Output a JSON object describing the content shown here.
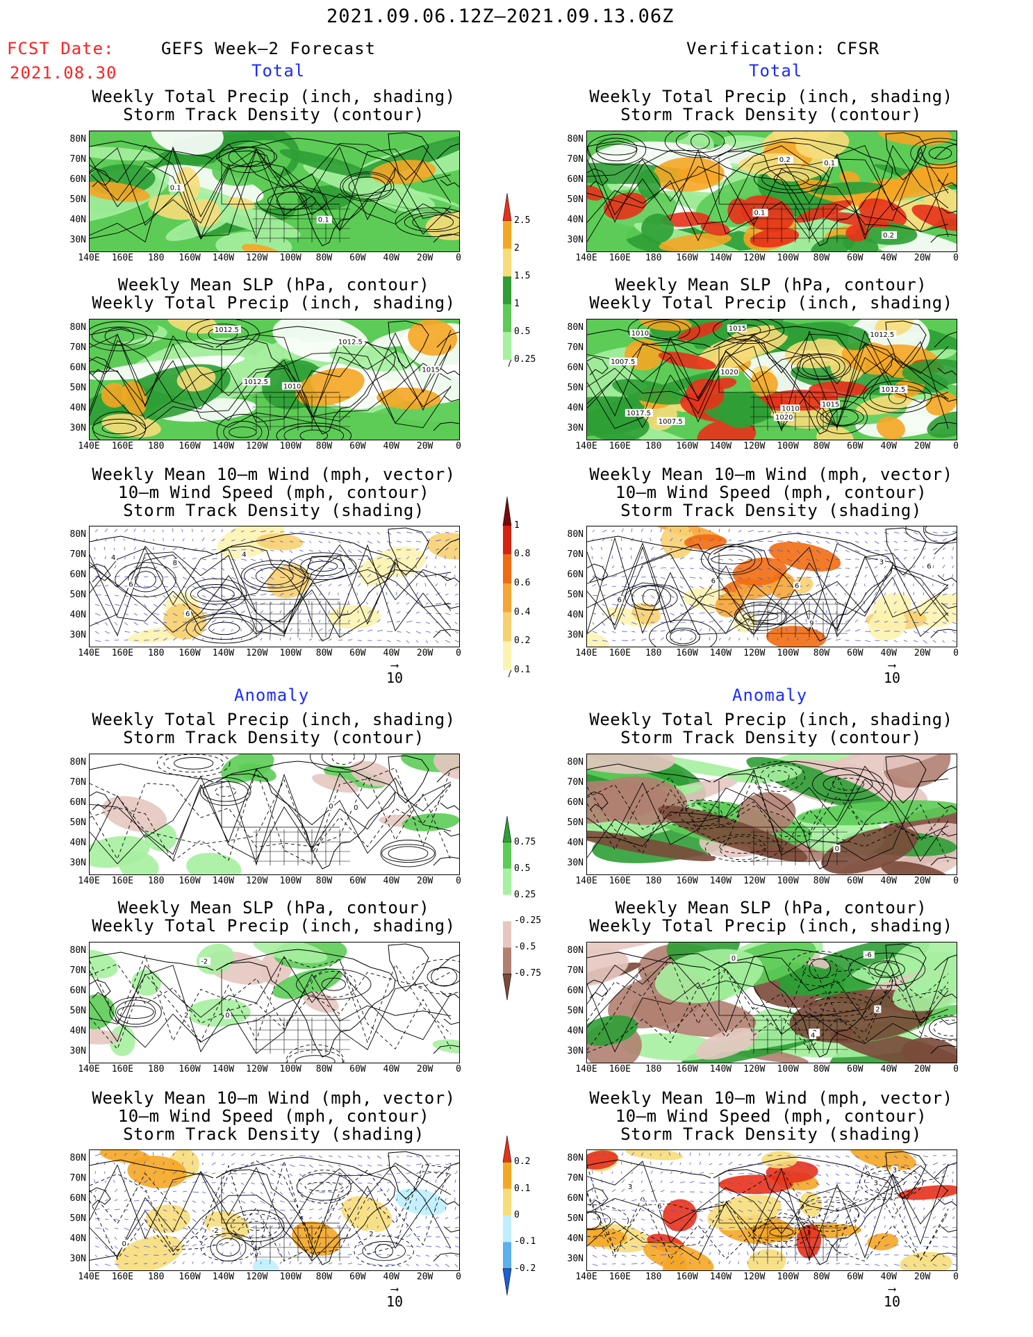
{
  "header": {
    "date_range": "2021.09.06.12Z–2021.09.13.06Z",
    "fcst_label": "FCST Date:",
    "fcst_date": "2021.08.30",
    "left_title": "GEFS Week–2 Forecast",
    "right_title": "Verification: CFSR",
    "total_label": "Total",
    "anomaly_label": "Anomaly"
  },
  "panel_titles": {
    "precip_storm": [
      "Weekly Total Precip (inch, shading)",
      "Storm Track Density (contour)"
    ],
    "slp_precip": [
      "Weekly Mean SLP (hPa, contour)",
      "Weekly Total Precip (inch, shading)"
    ],
    "wind_storm": [
      "Weekly Mean 10–m Wind (mph, vector)",
      "10–m Wind Speed (mph, contour)",
      "Storm Track Density (shading)"
    ]
  },
  "axes": {
    "lat_labels": [
      "80N",
      "70N",
      "60N",
      "50N",
      "40N",
      "30N"
    ],
    "lon_labels": [
      "140E",
      "160E",
      "180",
      "160W",
      "140W",
      "120W",
      "100W",
      "80W",
      "60W",
      "40W",
      "20W",
      "0"
    ]
  },
  "vector_ref": "10",
  "colorbars": {
    "precip_total": {
      "labels": [
        "2.5",
        "2",
        "1.5",
        "1",
        "0.5",
        "0.25"
      ],
      "colors": [
        "#e8311a",
        "#f5a623",
        "#f7dd7a",
        "#2e9e35",
        "#5ccc56",
        "#a6f0a0"
      ]
    },
    "storm_total": {
      "labels": [
        "1",
        "0.8",
        "0.6",
        "0.4",
        "0.2",
        "0.1"
      ],
      "colors": [
        "#7a0a0a",
        "#d62410",
        "#f26b10",
        "#f7a535",
        "#f7d070",
        "#fdf3b0"
      ]
    },
    "precip_anom": {
      "labels": [
        "0.75",
        "0.5",
        "0.25",
        "-0.25",
        "-0.5",
        "-0.75"
      ],
      "colors": [
        "#2e9e35",
        "#5ccc56",
        "#a6f0a0",
        "#ffffff",
        "#e6c7c0",
        "#b08070",
        "#7a4a3a"
      ]
    },
    "storm_anom": {
      "labels": [
        "0.2",
        "0.1",
        "0",
        "-0.1",
        "-0.2"
      ],
      "colors": [
        "#e8311a",
        "#f5a623",
        "#f7dd7a",
        "#bfefff",
        "#5ab0f0",
        "#1a60d8"
      ]
    }
  },
  "contour_labels": {
    "fcst_total_precip": [
      "0.1",
      "0.1"
    ],
    "fcst_total_slp": [
      "1012.5",
      "1012.5",
      "1015",
      "1012.5",
      "1010"
    ],
    "fcst_total_wind": [
      "4",
      "6",
      "6",
      "4",
      "8"
    ],
    "cfsr_total_precip": [
      "0.1",
      "0.2",
      "0.1",
      "0.2"
    ],
    "cfsr_total_slp": [
      "1020",
      "1017.5",
      "1010",
      "1012.5",
      "1015",
      "1010",
      "1007.5",
      "1015",
      "1012.5",
      "1007.5",
      "1020"
    ],
    "cfsr_total_wind": [
      "6",
      "6",
      "9",
      "3",
      "6",
      "6"
    ],
    "fcst_anom_precip": [
      "0",
      "0"
    ],
    "fcst_anom_slp": [
      "0",
      "-2",
      "2"
    ],
    "fcst_anom_wind": [
      "0",
      "2",
      "-2"
    ],
    "cfsr_anom_precip": [
      "0"
    ],
    "cfsr_anom_slp": [
      "0",
      "-2",
      "-6",
      "2",
      "4"
    ],
    "cfsr_anom_wind": [
      "3",
      "6",
      "3",
      "3"
    ]
  }
}
